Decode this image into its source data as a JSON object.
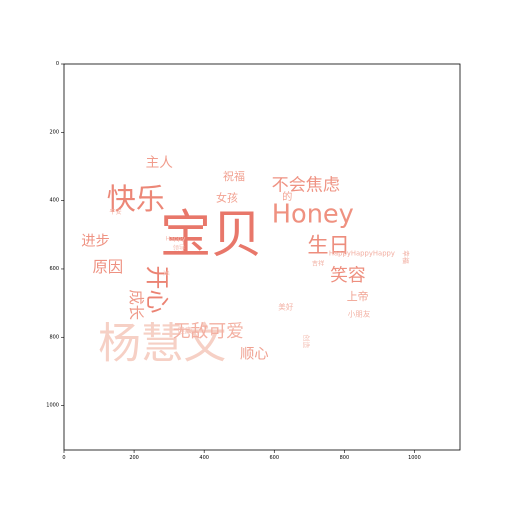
{
  "chart_data": {
    "type": "wordcloud",
    "xlim": [
      0,
      1130
    ],
    "ylim": [
      1130,
      0
    ],
    "x_ticks": [
      0,
      200,
      400,
      600,
      800,
      1000
    ],
    "y_ticks": [
      0,
      200,
      400,
      600,
      800,
      1000
    ],
    "x_tick_labels": [
      "0",
      "200",
      "400",
      "600",
      "800",
      "1000"
    ],
    "y_tick_labels": [
      "0",
      "200",
      "400",
      "600",
      "800",
      "1000"
    ],
    "grid": false,
    "words": [
      {
        "text": "宝贝",
        "x": 420,
        "y": 500,
        "size": 150,
        "color": "#e8776a",
        "rotate": 0
      },
      {
        "text": "杨慧文",
        "x": 280,
        "y": 820,
        "size": 125,
        "color": "#f6d0c5",
        "rotate": 0
      },
      {
        "text": "Honey",
        "x": 710,
        "y": 440,
        "size": 75,
        "color": "#ef9180",
        "rotate": 0
      },
      {
        "text": "快乐",
        "x": 205,
        "y": 395,
        "size": 85,
        "color": "#ec8777",
        "rotate": 0
      },
      {
        "text": "开心",
        "x": 265,
        "y": 660,
        "size": 70,
        "color": "#eb8373",
        "rotate": 90
      },
      {
        "text": "生日",
        "x": 755,
        "y": 530,
        "size": 62,
        "color": "#ed8d7d",
        "rotate": 0
      },
      {
        "text": "不会焦虑",
        "x": 690,
        "y": 355,
        "size": 50,
        "color": "#ef9383",
        "rotate": 0
      },
      {
        "text": "笑容",
        "x": 810,
        "y": 620,
        "size": 52,
        "color": "#ee8f7f",
        "rotate": 0
      },
      {
        "text": "无敌可爱",
        "x": 412,
        "y": 785,
        "size": 52,
        "color": "#f3b0a2",
        "rotate": 0
      },
      {
        "text": "进步",
        "x": 90,
        "y": 520,
        "size": 42,
        "color": "#ef9484",
        "rotate": 0
      },
      {
        "text": "原因",
        "x": 125,
        "y": 595,
        "size": 45,
        "color": "#ee9181",
        "rotate": 0
      },
      {
        "text": "成长",
        "x": 205,
        "y": 705,
        "size": 45,
        "color": "#ef9a8a",
        "rotate": 90
      },
      {
        "text": "顺心",
        "x": 543,
        "y": 850,
        "size": 42,
        "color": "#f0a191",
        "rotate": 0
      },
      {
        "text": "主人",
        "x": 272,
        "y": 290,
        "size": 40,
        "color": "#f19c8c",
        "rotate": 0
      },
      {
        "text": "祝福",
        "x": 485,
        "y": 330,
        "size": 32,
        "color": "#f1a090",
        "rotate": 0
      },
      {
        "text": "女孩",
        "x": 465,
        "y": 392,
        "size": 32,
        "color": "#f2a393",
        "rotate": 0
      },
      {
        "text": "的",
        "x": 637,
        "y": 390,
        "size": 30,
        "color": "#f2a595",
        "rotate": 0
      },
      {
        "text": "上帝",
        "x": 838,
        "y": 680,
        "size": 32,
        "color": "#f1a393",
        "rotate": 0
      },
      {
        "text": "平安",
        "x": 147,
        "y": 435,
        "size": 18,
        "color": "#f2b0a3",
        "rotate": 0
      },
      {
        "text": "Happy",
        "x": 318,
        "y": 513,
        "size": 18,
        "color": "#f4c0b5",
        "rotate": 0
      },
      {
        "text": "领导",
        "x": 328,
        "y": 540,
        "size": 18,
        "color": "#f4c0b5",
        "rotate": 0
      },
      {
        "text": "吉祥",
        "x": 725,
        "y": 585,
        "size": 18,
        "color": "#f2b0a3",
        "rotate": 0
      },
      {
        "text": "HappyHappyHappy",
        "x": 850,
        "y": 555,
        "size": 20,
        "color": "#f2aea1",
        "rotate": 0
      },
      {
        "text": "幸福",
        "x": 975,
        "y": 565,
        "size": 20,
        "color": "#f2b0a3",
        "rotate": 90
      },
      {
        "text": "美好",
        "x": 633,
        "y": 712,
        "size": 22,
        "color": "#f3b2a5",
        "rotate": 0
      },
      {
        "text": "小朋友",
        "x": 842,
        "y": 732,
        "size": 22,
        "color": "#f3b2a5",
        "rotate": 0
      },
      {
        "text": "健康",
        "x": 345,
        "y": 780,
        "size": 22,
        "color": "#f4bcb0",
        "rotate": 0
      },
      {
        "text": "爱",
        "x": 290,
        "y": 612,
        "size": 18,
        "color": "#f4c0b5",
        "rotate": 90
      },
      {
        "text": "创造",
        "x": 690,
        "y": 812,
        "size": 20,
        "color": "#f4c0b5",
        "rotate": 90
      }
    ]
  }
}
